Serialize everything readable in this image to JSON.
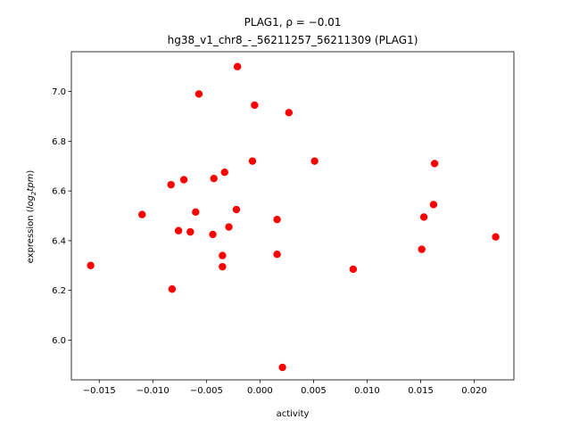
{
  "chart_data": {
    "type": "scatter",
    "title_line1": "PLAG1, ",
    "title_rho": "ρ = −0.01",
    "title_line2": "hg38_v1_chr8_-_56211257_56211309 (PLAG1)",
    "xlabel": "activity",
    "ylabel_prefix": "expression (",
    "ylabel_log": "log",
    "ylabel_sub": "2",
    "ylabel_tpm": "tpm",
    "ylabel_suffix": ")",
    "xlim": [
      -0.0176,
      0.0237
    ],
    "ylim": [
      5.84,
      7.16
    ],
    "xticks": [
      -0.015,
      -0.01,
      -0.005,
      0.0,
      0.005,
      0.01,
      0.015,
      0.02
    ],
    "xtick_labels": [
      "−0.015",
      "−0.010",
      "−0.005",
      "0.000",
      "0.005",
      "0.010",
      "0.015",
      "0.020"
    ],
    "yticks": [
      6.0,
      6.2,
      6.4,
      6.6,
      6.8,
      7.0
    ],
    "ytick_labels": [
      "6.0",
      "6.2",
      "6.4",
      "6.6",
      "6.8",
      "7.0"
    ],
    "marker_color": "#ff0000",
    "grid": false,
    "points": [
      {
        "x": -0.0158,
        "y": 6.3
      },
      {
        "x": -0.011,
        "y": 6.505
      },
      {
        "x": -0.0083,
        "y": 6.625
      },
      {
        "x": -0.0082,
        "y": 6.205
      },
      {
        "x": -0.0076,
        "y": 6.44
      },
      {
        "x": -0.0071,
        "y": 6.645
      },
      {
        "x": -0.0065,
        "y": 6.435
      },
      {
        "x": -0.006,
        "y": 6.515
      },
      {
        "x": -0.0057,
        "y": 6.99
      },
      {
        "x": -0.0044,
        "y": 6.425
      },
      {
        "x": -0.0043,
        "y": 6.65
      },
      {
        "x": -0.0035,
        "y": 6.34
      },
      {
        "x": -0.0035,
        "y": 6.295
      },
      {
        "x": -0.0033,
        "y": 6.675
      },
      {
        "x": -0.0029,
        "y": 6.455
      },
      {
        "x": -0.0022,
        "y": 6.525
      },
      {
        "x": -0.0021,
        "y": 7.1
      },
      {
        "x": -0.0007,
        "y": 6.72
      },
      {
        "x": -0.0005,
        "y": 6.945
      },
      {
        "x": 0.0016,
        "y": 6.485
      },
      {
        "x": 0.0016,
        "y": 6.345
      },
      {
        "x": 0.0021,
        "y": 5.89
      },
      {
        "x": 0.0027,
        "y": 6.915
      },
      {
        "x": 0.0051,
        "y": 6.72
      },
      {
        "x": 0.0087,
        "y": 6.285
      },
      {
        "x": 0.0151,
        "y": 6.365
      },
      {
        "x": 0.0153,
        "y": 6.495
      },
      {
        "x": 0.0162,
        "y": 6.545
      },
      {
        "x": 0.0163,
        "y": 6.71
      },
      {
        "x": 0.022,
        "y": 6.415
      }
    ]
  }
}
